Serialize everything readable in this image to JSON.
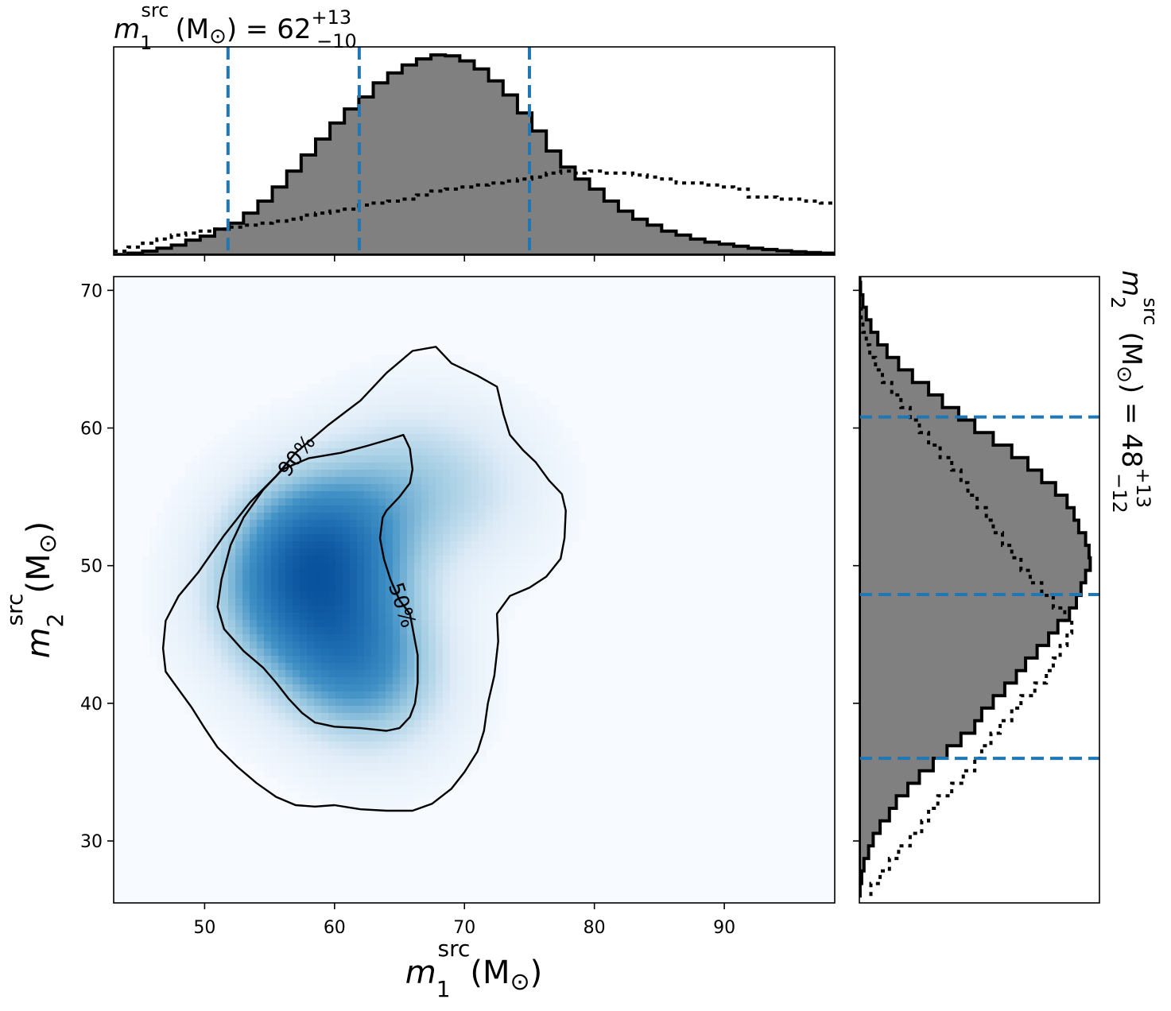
{
  "chart_data": [
    {
      "type": "heatmap",
      "panel": "joint",
      "xlabel": {
        "symbol": "m",
        "sub": "1",
        "sup": "src",
        "unit": "(M",
        "sun": "⊙",
        "close": ")"
      },
      "ylabel": {
        "symbol": "m",
        "sub": "2",
        "sup": "src",
        "unit": "(M",
        "sun": "⊙",
        "close": ")"
      },
      "xlim": [
        43,
        98.5
      ],
      "ylim": [
        25.5,
        71
      ],
      "xticks": [
        50,
        60,
        70,
        80,
        90
      ],
      "yticks": [
        30,
        40,
        50,
        60,
        70
      ],
      "colormap": [
        "#f7fbff",
        "#deebf7",
        "#9ecae1",
        "#4292c6",
        "#2171b5",
        "#08519c"
      ],
      "density_peaks": [
        {
          "x": 57.8,
          "y": 51.0,
          "amp": 1.0
        },
        {
          "x": 60.8,
          "y": 44.0,
          "amp": 0.9
        },
        {
          "x": 61.5,
          "y": 52.0,
          "amp": 0.45
        },
        {
          "x": 65.5,
          "y": 56.5,
          "amp": 0.35
        },
        {
          "x": 71.0,
          "y": 55.5,
          "amp": 0.25
        },
        {
          "x": 64.0,
          "y": 41.0,
          "amp": 0.35
        },
        {
          "x": 55.0,
          "y": 47.0,
          "amp": 0.45
        }
      ],
      "contours": [
        {
          "level": "90%",
          "points": [
            [
              46.8,
              44.0
            ],
            [
              47.0,
              46.0
            ],
            [
              48.0,
              47.8
            ],
            [
              49.5,
              49.5
            ],
            [
              51.5,
              52.2
            ],
            [
              53.5,
              54.6
            ],
            [
              55.5,
              56.5
            ],
            [
              57.0,
              58.2
            ],
            [
              59.5,
              60.2
            ],
            [
              62.0,
              62.0
            ],
            [
              64.0,
              64.0
            ],
            [
              66.0,
              65.6
            ],
            [
              67.8,
              65.9
            ],
            [
              69.0,
              64.7
            ],
            [
              71.0,
              63.8
            ],
            [
              72.5,
              63.0
            ],
            [
              73.0,
              61.0
            ],
            [
              73.5,
              59.5
            ],
            [
              74.5,
              58.4
            ],
            [
              75.5,
              57.5
            ],
            [
              76.5,
              56.2
            ],
            [
              77.5,
              55.2
            ],
            [
              77.8,
              54.0
            ],
            [
              77.7,
              52.0
            ],
            [
              77.4,
              50.5
            ],
            [
              76.3,
              49.2
            ],
            [
              75.0,
              48.4
            ],
            [
              73.5,
              47.8
            ],
            [
              72.5,
              46.5
            ],
            [
              72.6,
              44.5
            ],
            [
              72.3,
              42.0
            ],
            [
              71.8,
              40.0
            ],
            [
              71.5,
              38.0
            ],
            [
              71.0,
              36.5
            ],
            [
              70.0,
              35.0
            ],
            [
              69.0,
              33.8
            ],
            [
              67.5,
              32.7
            ],
            [
              66.0,
              32.2
            ],
            [
              64.0,
              32.2
            ],
            [
              62.0,
              32.3
            ],
            [
              60.0,
              32.6
            ],
            [
              58.5,
              32.5
            ],
            [
              57.0,
              32.6
            ],
            [
              55.5,
              33.2
            ],
            [
              54.0,
              34.2
            ],
            [
              52.5,
              35.4
            ],
            [
              51.0,
              36.8
            ],
            [
              50.0,
              38.2
            ],
            [
              49.0,
              39.7
            ],
            [
              48.0,
              41.0
            ],
            [
              47.0,
              42.3
            ],
            [
              46.8,
              44.0
            ]
          ],
          "label_at": {
            "x": 57.5,
            "y": 58.2,
            "angle": -52
          }
        },
        {
          "level": "50%",
          "points": [
            [
              51.0,
              47.0
            ],
            [
              51.3,
              49.0
            ],
            [
              52.0,
              51.5
            ],
            [
              53.0,
              53.5
            ],
            [
              54.5,
              55.5
            ],
            [
              56.0,
              57.0
            ],
            [
              58.0,
              57.8
            ],
            [
              60.5,
              58.2
            ],
            [
              62.5,
              58.7
            ],
            [
              64.3,
              59.2
            ],
            [
              65.3,
              59.5
            ],
            [
              65.8,
              58.5
            ],
            [
              66.0,
              57.0
            ],
            [
              65.8,
              56.0
            ],
            [
              65.0,
              55.0
            ],
            [
              64.0,
              54.0
            ],
            [
              63.7,
              53.5
            ],
            [
              63.5,
              52.0
            ],
            [
              63.8,
              50.5
            ],
            [
              64.3,
              49.0
            ],
            [
              65.0,
              47.5
            ],
            [
              65.8,
              46.5
            ],
            [
              66.0,
              45.5
            ],
            [
              66.4,
              43.5
            ],
            [
              66.4,
              41.5
            ],
            [
              66.2,
              40.0
            ],
            [
              65.8,
              39.0
            ],
            [
              65.0,
              38.2
            ],
            [
              64.0,
              38.0
            ],
            [
              62.0,
              38.2
            ],
            [
              60.0,
              38.3
            ],
            [
              58.5,
              38.6
            ],
            [
              57.5,
              39.3
            ],
            [
              56.5,
              40.3
            ],
            [
              55.5,
              41.5
            ],
            [
              54.5,
              42.6
            ],
            [
              53.0,
              43.8
            ],
            [
              51.5,
              45.4
            ],
            [
              51.0,
              47.0
            ]
          ],
          "label_at": {
            "x": 64.7,
            "y": 47.5,
            "angle": 72
          }
        }
      ]
    },
    {
      "type": "histogram",
      "panel": "top-marginal",
      "orientation": "vertical",
      "title": {
        "symbol": "m",
        "sub": "1",
        "sup": "src",
        "unit": "(M",
        "sun": "⊙",
        "close": ") = 62",
        "plus": "+13",
        "minus": "−10"
      },
      "xlim": [
        43,
        98.5
      ],
      "ylim": [
        0,
        1.04
      ],
      "quantile_lines": [
        51.8,
        61.9,
        75.0
      ],
      "bin_edges_start": 43,
      "bin_width": 1.11,
      "posterior": [
        0.003,
        0.01,
        0.02,
        0.035,
        0.05,
        0.075,
        0.095,
        0.13,
        0.16,
        0.21,
        0.27,
        0.34,
        0.42,
        0.5,
        0.58,
        0.66,
        0.73,
        0.79,
        0.86,
        0.91,
        0.95,
        0.98,
        1.0,
        0.995,
        0.97,
        0.93,
        0.87,
        0.8,
        0.71,
        0.62,
        0.52,
        0.44,
        0.38,
        0.33,
        0.27,
        0.22,
        0.18,
        0.15,
        0.12,
        0.1,
        0.08,
        0.065,
        0.055,
        0.045,
        0.035,
        0.028,
        0.022,
        0.017,
        0.013,
        0.01,
        0.008,
        0.006,
        0.004
      ],
      "prior": [
        0.02,
        0.04,
        0.06,
        0.08,
        0.1,
        0.11,
        0.12,
        0.13,
        0.14,
        0.15,
        0.16,
        0.17,
        0.18,
        0.2,
        0.21,
        0.22,
        0.23,
        0.25,
        0.26,
        0.27,
        0.28,
        0.3,
        0.32,
        0.33,
        0.34,
        0.35,
        0.36,
        0.37,
        0.38,
        0.39,
        0.41,
        0.42,
        0.41,
        0.42,
        0.41,
        0.41,
        0.4,
        0.39,
        0.38,
        0.36,
        0.36,
        0.35,
        0.34,
        0.33,
        0.29,
        0.29,
        0.28,
        0.28,
        0.27,
        0.26,
        0.25,
        0.23,
        0.22
      ]
    },
    {
      "type": "histogram",
      "panel": "right-marginal",
      "orientation": "horizontal",
      "title": {
        "symbol": "m",
        "sub": "2",
        "sup": "src",
        "unit": "(M",
        "sun": "⊙",
        "close": ") = 48",
        "plus": "+13",
        "minus": "−12"
      },
      "ylim": [
        25.5,
        71
      ],
      "xlim": [
        0,
        1.04
      ],
      "quantile_lines": [
        36.0,
        47.9,
        60.8
      ],
      "bin_edges_start": 26,
      "bin_width": 0.91,
      "posterior": [
        0.003,
        0.01,
        0.02,
        0.04,
        0.06,
        0.09,
        0.13,
        0.16,
        0.21,
        0.26,
        0.32,
        0.38,
        0.44,
        0.5,
        0.53,
        0.58,
        0.63,
        0.68,
        0.72,
        0.77,
        0.82,
        0.86,
        0.91,
        0.94,
        0.96,
        0.98,
        1.0,
        0.995,
        0.98,
        0.95,
        0.93,
        0.9,
        0.85,
        0.79,
        0.73,
        0.66,
        0.58,
        0.5,
        0.43,
        0.36,
        0.3,
        0.23,
        0.17,
        0.12,
        0.08,
        0.05,
        0.03,
        0.015,
        0.005,
        0.002
      ],
      "prior": [
        0.05,
        0.09,
        0.13,
        0.17,
        0.22,
        0.27,
        0.3,
        0.34,
        0.4,
        0.45,
        0.5,
        0.53,
        0.57,
        0.61,
        0.66,
        0.7,
        0.76,
        0.81,
        0.84,
        0.87,
        0.9,
        0.92,
        0.89,
        0.84,
        0.79,
        0.74,
        0.7,
        0.66,
        0.62,
        0.58,
        0.55,
        0.51,
        0.47,
        0.44,
        0.4,
        0.35,
        0.3,
        0.26,
        0.22,
        0.18,
        0.14,
        0.1,
        0.07,
        0.045,
        0.03,
        0.015,
        0.008
      ]
    }
  ],
  "colors": {
    "hist_fill": "#808080",
    "hist_edge": "#000000",
    "quantile": "#1f77b4",
    "contour": "#000000"
  }
}
